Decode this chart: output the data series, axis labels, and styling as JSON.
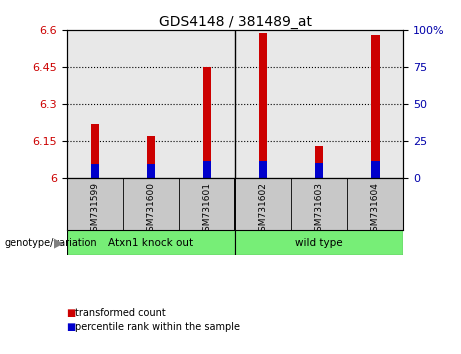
{
  "title": "GDS4148 / 381489_at",
  "samples": [
    "GSM731599",
    "GSM731600",
    "GSM731601",
    "GSM731602",
    "GSM731603",
    "GSM731604"
  ],
  "base": 6.0,
  "red_tops": [
    6.22,
    6.17,
    6.45,
    6.59,
    6.13,
    6.58
  ],
  "blue_tops": [
    6.055,
    6.055,
    6.07,
    6.07,
    6.06,
    6.07
  ],
  "ylim": [
    6.0,
    6.6
  ],
  "yticks": [
    6.0,
    6.15,
    6.3,
    6.45,
    6.6
  ],
  "ytick_labels": [
    "6",
    "6.15",
    "6.3",
    "6.45",
    "6.6"
  ],
  "right_yticks": [
    0,
    25,
    50,
    75,
    100
  ],
  "right_ytick_labels": [
    "0",
    "25",
    "50",
    "75",
    "100%"
  ],
  "group_label": "genotype/variation",
  "group1_label": "Atxn1 knock out",
  "group2_label": "wild type",
  "legend_red": "transformed count",
  "legend_blue": "percentile rank within the sample",
  "bar_width": 0.15,
  "bar_color_red": "#cc0000",
  "bar_color_blue": "#0000cc",
  "tick_color_left": "#cc0000",
  "tick_color_right": "#0000aa",
  "bg_plot": "#e8e8e8",
  "bg_label": "#c8c8c8",
  "bg_group": "#77ee77",
  "separator_idx": 2.5
}
